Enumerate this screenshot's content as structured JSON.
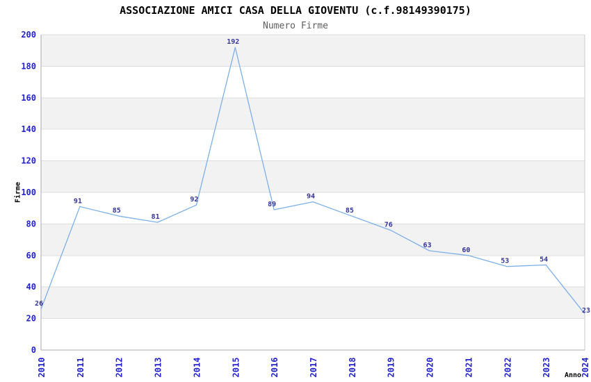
{
  "chart_data": {
    "type": "line",
    "title": "ASSOCIAZIONE AMICI CASA DELLA GIOVENTU (c.f.98149390175)",
    "subtitle": "Numero Firme",
    "xlabel": "Anno",
    "ylabel": "Firme",
    "categories": [
      "2010",
      "2011",
      "2012",
      "2013",
      "2014",
      "2015",
      "2016",
      "2017",
      "2018",
      "2019",
      "2020",
      "2021",
      "2022",
      "2023",
      "2024"
    ],
    "series": [
      {
        "name": "Numero Firme",
        "values": [
          26,
          91,
          85,
          81,
          92,
          192,
          89,
          94,
          85,
          76,
          63,
          60,
          53,
          54,
          23
        ]
      }
    ],
    "ylim": [
      0,
      200
    ],
    "ytick_step": 20,
    "grid": "horizontal gridlines with alternating shaded bands every 20 units",
    "legend": "none",
    "point_labels": true,
    "x_tick_rotation": -90
  },
  "colors": {
    "background": "#ffffff",
    "title": "#000000",
    "subtitle": "#5e5e5e",
    "axis_title": "#000000",
    "axis_tick_label": "#2222cc",
    "point_label": "#333399",
    "line": "#7cb0e8",
    "band": "#f2f2f2",
    "gridline": "#dddddd",
    "axis_line": "#aaaaaa",
    "plot_right_border": "#c9c9c9"
  }
}
